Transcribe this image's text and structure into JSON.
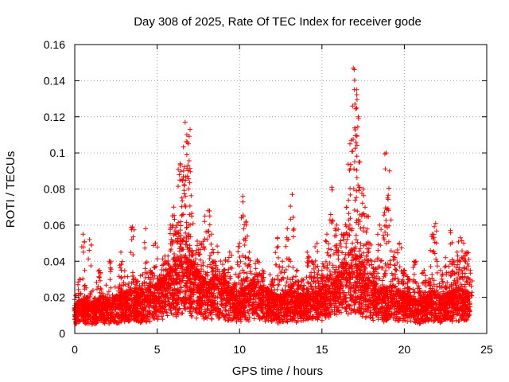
{
  "chart_data": {
    "type": "scatter",
    "title": "Day 308 of 2025, Rate Of TEC Index for receiver gode",
    "xlabel": "GPS time / hours",
    "ylabel": "ROTI / TECUs",
    "xlim": [
      0,
      25
    ],
    "ylim": [
      0,
      0.16
    ],
    "xticks": [
      0,
      5,
      10,
      15,
      20,
      25
    ],
    "xtick_labels": [
      "0",
      "5",
      "10",
      "15",
      "20",
      "25"
    ],
    "yticks": [
      0,
      0.02,
      0.04,
      0.06,
      0.08,
      0.1,
      0.12,
      0.14,
      0.16
    ],
    "ytick_labels": [
      "0",
      "0.02",
      "0.04",
      "0.06",
      "0.08",
      "0.1",
      "0.12",
      "0.14",
      "0.16"
    ],
    "grid": true,
    "marker": "plus",
    "color": "#ff0000",
    "series": [
      {
        "name": "ROTI",
        "x": [
          0.1,
          0.3,
          0.5,
          0.7,
          0.9,
          1.2,
          1.5,
          1.8,
          2.1,
          2.4,
          2.8,
          3.1,
          3.3,
          3.5,
          3.7,
          4.0,
          4.3,
          4.6,
          4.9,
          5.2,
          5.5,
          5.8,
          6.0,
          6.2,
          6.4,
          6.5,
          6.6,
          6.7,
          6.8,
          6.9,
          7.0,
          7.1,
          7.2,
          7.4,
          7.6,
          7.9,
          8.1,
          8.3,
          8.5,
          8.8,
          9.1,
          9.4,
          9.7,
          10.0,
          10.2,
          10.4,
          10.6,
          10.8,
          11.1,
          11.4,
          11.7,
          12.0,
          12.3,
          12.6,
          12.9,
          13.2,
          13.5,
          13.8,
          14.1,
          14.4,
          14.7,
          15.0,
          15.3,
          15.6,
          15.9,
          16.2,
          16.5,
          16.7,
          16.9,
          17.0,
          17.1,
          17.2,
          17.3,
          17.5,
          17.7,
          17.9,
          18.2,
          18.5,
          18.8,
          18.9,
          19.1,
          19.4,
          19.7,
          20.0,
          20.3,
          20.6,
          20.9,
          21.2,
          21.5,
          21.7,
          21.9,
          22.2,
          22.5,
          22.8,
          23.0,
          23.2,
          23.4,
          23.6,
          23.8,
          24.0
        ],
        "y": [
          0.012,
          0.03,
          0.055,
          0.02,
          0.052,
          0.018,
          0.035,
          0.015,
          0.04,
          0.02,
          0.045,
          0.018,
          0.022,
          0.059,
          0.03,
          0.025,
          0.058,
          0.035,
          0.05,
          0.03,
          0.04,
          0.06,
          0.07,
          0.06,
          0.094,
          0.075,
          0.09,
          0.117,
          0.11,
          0.105,
          0.113,
          0.065,
          0.04,
          0.035,
          0.05,
          0.065,
          0.068,
          0.055,
          0.04,
          0.03,
          0.035,
          0.045,
          0.028,
          0.05,
          0.076,
          0.062,
          0.045,
          0.03,
          0.04,
          0.035,
          0.025,
          0.03,
          0.053,
          0.04,
          0.058,
          0.077,
          0.035,
          0.03,
          0.045,
          0.04,
          0.05,
          0.035,
          0.055,
          0.081,
          0.06,
          0.055,
          0.07,
          0.105,
          0.147,
          0.127,
          0.135,
          0.12,
          0.095,
          0.08,
          0.065,
          0.05,
          0.04,
          0.06,
          0.067,
          0.1,
          0.09,
          0.045,
          0.05,
          0.035,
          0.03,
          0.04,
          0.025,
          0.035,
          0.03,
          0.055,
          0.061,
          0.035,
          0.042,
          0.057,
          0.04,
          0.045,
          0.053,
          0.05,
          0.045,
          0.035
        ],
        "floor_min": 0.002,
        "band_y": [
          0.01,
          0.012,
          0.013,
          0.012,
          0.011,
          0.012,
          0.013,
          0.014,
          0.013,
          0.012,
          0.013,
          0.014,
          0.015,
          0.016,
          0.017,
          0.016,
          0.015,
          0.016,
          0.017,
          0.018,
          0.019,
          0.02,
          0.022,
          0.024,
          0.026,
          0.028,
          0.03,
          0.032,
          0.03,
          0.028,
          0.026,
          0.024,
          0.022,
          0.02,
          0.021,
          0.022,
          0.023,
          0.022,
          0.02,
          0.018,
          0.017,
          0.016,
          0.017,
          0.018,
          0.019,
          0.02,
          0.019,
          0.018,
          0.017,
          0.016,
          0.015,
          0.014,
          0.015,
          0.016,
          0.017,
          0.016,
          0.015,
          0.014,
          0.015,
          0.016,
          0.017,
          0.016,
          0.018,
          0.02,
          0.022,
          0.024,
          0.026,
          0.028,
          0.03,
          0.032,
          0.034,
          0.03,
          0.028,
          0.025,
          0.022,
          0.02,
          0.018,
          0.017,
          0.018,
          0.019,
          0.018,
          0.017,
          0.016,
          0.015,
          0.014,
          0.013,
          0.012,
          0.013,
          0.014,
          0.015,
          0.016,
          0.015,
          0.014,
          0.015,
          0.016,
          0.017,
          0.018,
          0.017,
          0.016,
          0.015
        ]
      }
    ]
  }
}
